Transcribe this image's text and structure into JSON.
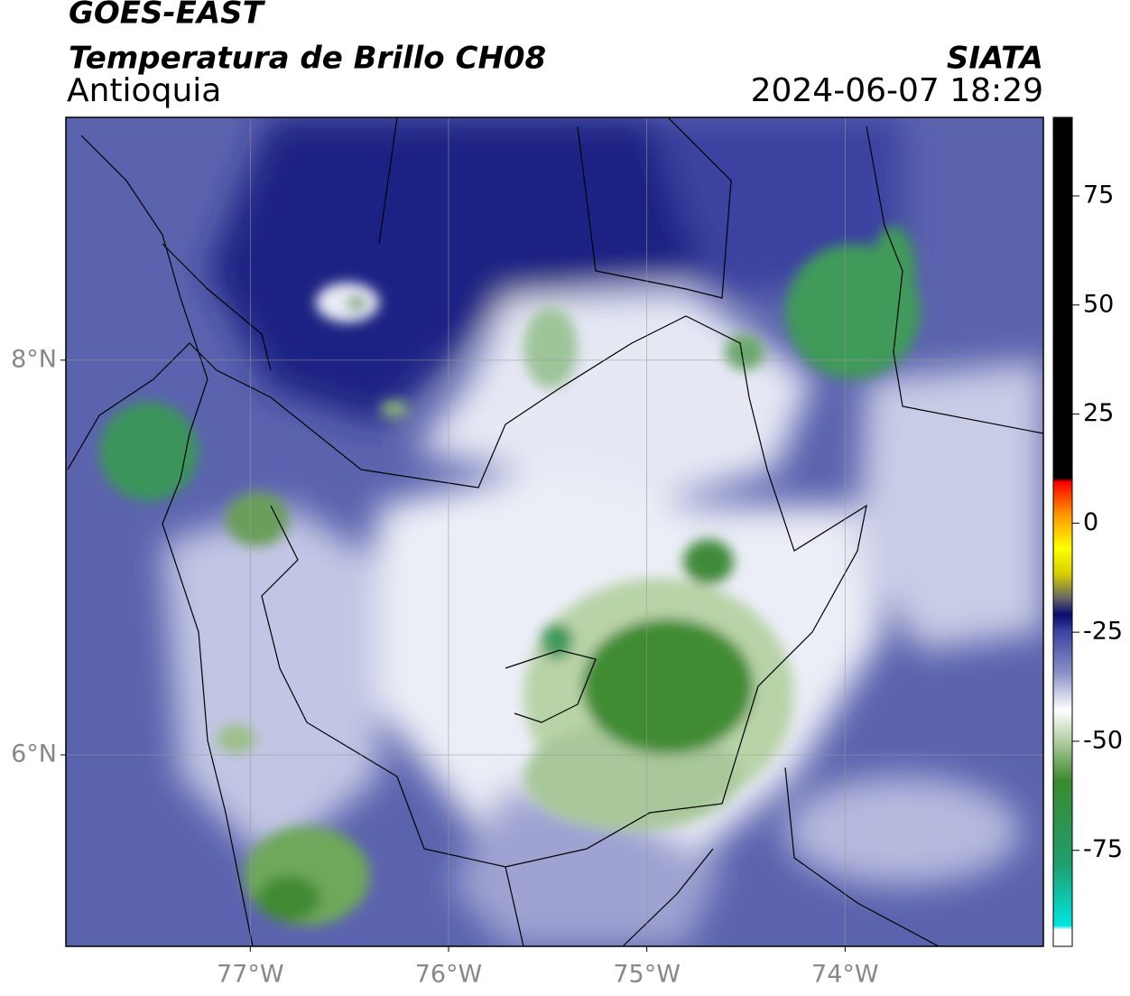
{
  "header": {
    "source": "GOES-EAST",
    "product": "Temperatura de Brillo CH08",
    "region": "Antioquia",
    "org": "SIATA",
    "datetime": "2024-06-07 18:29"
  },
  "map": {
    "xlim": [
      -77.93,
      -73.0
    ],
    "ylim": [
      5.03,
      9.23
    ],
    "xticks": [
      {
        "value": -77,
        "label": "77°W"
      },
      {
        "value": -76,
        "label": "76°W"
      },
      {
        "value": -75,
        "label": "75°W"
      },
      {
        "value": -74,
        "label": "74°W"
      }
    ],
    "yticks": [
      {
        "value": 6,
        "label": "6°N"
      },
      {
        "value": 8,
        "label": "8°N"
      }
    ],
    "grid": true
  },
  "colorbar": {
    "lim": [
      -97,
      93
    ],
    "ticks": [
      -75,
      -50,
      -25,
      0,
      25,
      50,
      75
    ]
  }
}
